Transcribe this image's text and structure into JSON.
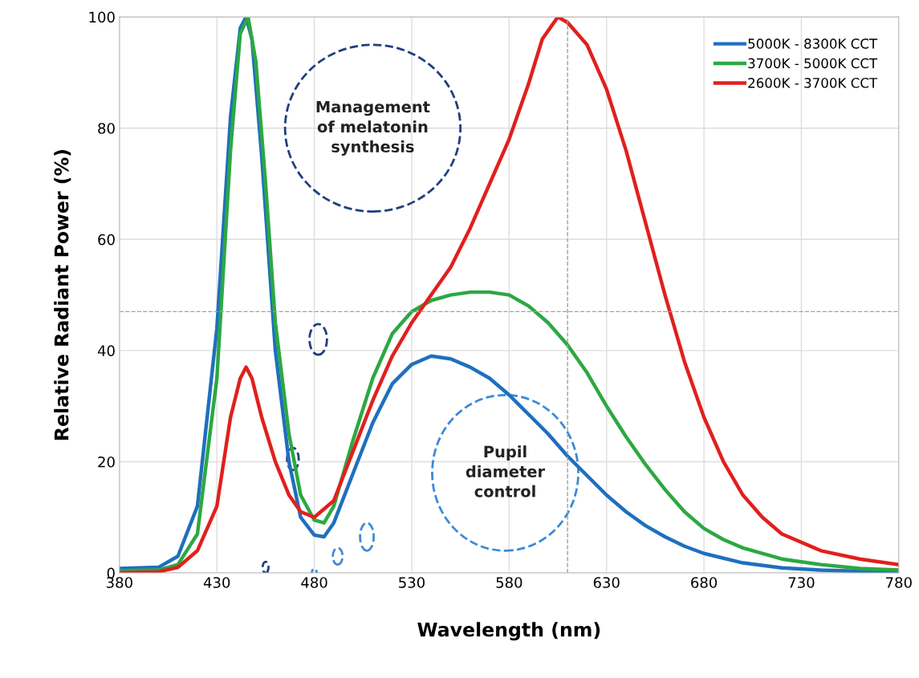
{
  "chart_data": {
    "type": "line",
    "xlabel": "Wavelength (nm)",
    "ylabel": "Relative Radiant Power (%)",
    "xlim": [
      380,
      780
    ],
    "xticks": [
      380,
      430,
      480,
      530,
      580,
      630,
      680,
      730,
      780
    ],
    "ylim": [
      0,
      100
    ],
    "yticks": [
      0,
      20,
      40,
      60,
      80,
      100
    ],
    "grid": true,
    "legend": "top right",
    "line_style": "solid",
    "annotations": [
      "Management\nof melatonin\nsynthesis",
      "Pupil\ndiameter\ncontrol"
    ],
    "ref_lines": [
      {
        "axis": "x",
        "value": 610,
        "color": "#a0a0a0",
        "line_style": "dashed"
      },
      {
        "axis": "y",
        "value": 47,
        "color": "#a0a0a0",
        "line_style": "dashed"
      }
    ],
    "series": [
      {
        "name": "5000K - 8300K CCT",
        "color": "#1f6fbf",
        "x": [
          380,
          400,
          410,
          420,
          430,
          437,
          442,
          445,
          448,
          453,
          460,
          467,
          473,
          480,
          485,
          490,
          500,
          510,
          520,
          530,
          540,
          550,
          560,
          570,
          580,
          590,
          600,
          610,
          620,
          630,
          640,
          650,
          660,
          670,
          680,
          700,
          720,
          740,
          760,
          780
        ],
        "values": [
          0.8,
          1,
          3,
          12,
          44,
          82,
          98,
          100,
          96,
          75,
          40,
          20,
          10,
          6.8,
          6.5,
          9,
          18,
          27,
          34,
          37.5,
          39,
          38.5,
          37,
          35,
          32,
          28.5,
          25,
          21,
          17.5,
          14,
          11,
          8.5,
          6.5,
          4.8,
          3.5,
          1.8,
          0.9,
          0.5,
          0.3,
          0.2
        ]
      },
      {
        "name": "3700K - 5000K CCT",
        "color": "#2ca842",
        "x": [
          380,
          400,
          410,
          420,
          430,
          437,
          442,
          446,
          450,
          455,
          460,
          467,
          473,
          480,
          485,
          490,
          500,
          510,
          520,
          530,
          540,
          550,
          560,
          570,
          580,
          590,
          600,
          610,
          620,
          630,
          640,
          650,
          660,
          670,
          680,
          690,
          700,
          720,
          740,
          760,
          780
        ],
        "values": [
          0.4,
          0.5,
          1.5,
          7,
          35,
          76,
          97,
          100,
          92,
          70,
          45,
          25,
          14,
          9.5,
          9,
          12,
          24,
          35,
          43,
          47,
          49,
          50,
          50.5,
          50.5,
          50,
          48,
          45,
          41,
          36,
          30,
          24.5,
          19.5,
          15,
          11,
          8,
          6,
          4.5,
          2.5,
          1.5,
          0.8,
          0.5
        ]
      },
      {
        "name": "2600K - 3700K CCT",
        "color": "#e0201e",
        "x": [
          380,
          400,
          410,
          420,
          430,
          437,
          442,
          445,
          448,
          453,
          460,
          467,
          473,
          480,
          490,
          500,
          510,
          520,
          530,
          540,
          550,
          560,
          570,
          580,
          590,
          597,
          605,
          610,
          620,
          630,
          640,
          650,
          660,
          670,
          680,
          690,
          700,
          710,
          720,
          740,
          760,
          780
        ],
        "values": [
          0,
          0.2,
          1,
          4,
          12,
          28,
          35,
          37,
          35,
          28,
          20,
          14,
          11,
          10,
          13,
          22,
          31,
          39,
          45,
          50,
          55,
          62,
          70,
          78,
          88,
          96,
          100,
          99,
          95,
          87,
          76,
          63,
          50,
          38,
          28,
          20,
          14,
          10,
          7,
          4,
          2.5,
          1.5
        ]
      }
    ]
  }
}
